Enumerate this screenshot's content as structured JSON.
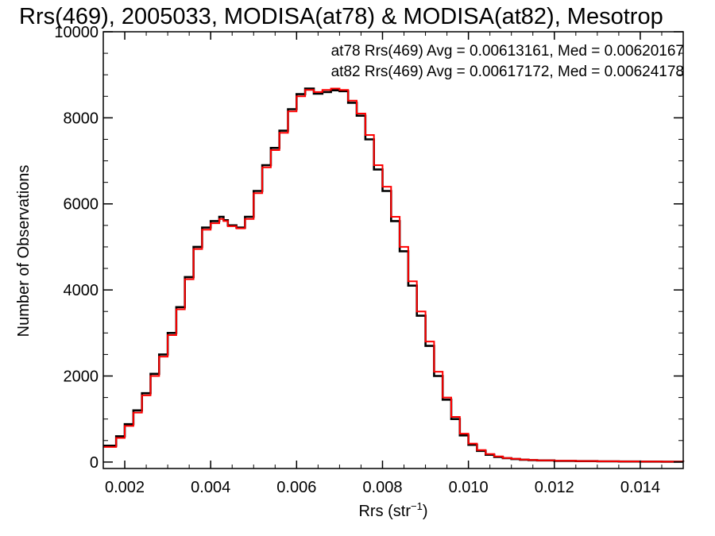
{
  "chart_data": {
    "type": "line",
    "step": true,
    "title": "Rrs(469), 2005033, MODISA(at78) & MODISA(at82), Mesotrop",
    "xlabel": "Rrs (str",
    "xlabel_sup": "−1",
    "xlabel_close": ")",
    "ylabel": "Number of Observations",
    "xlim": [
      0.0015,
      0.015
    ],
    "ylim": [
      -150,
      10000
    ],
    "xticks": [
      {
        "value": 0.002,
        "label": "0.002"
      },
      {
        "value": 0.004,
        "label": "0.004"
      },
      {
        "value": 0.006,
        "label": "0.006"
      },
      {
        "value": 0.008,
        "label": "0.008"
      },
      {
        "value": 0.01,
        "label": "0.010"
      },
      {
        "value": 0.012,
        "label": "0.012"
      },
      {
        "value": 0.014,
        "label": "0.014"
      }
    ],
    "yticks": [
      {
        "value": 0,
        "label": "0"
      },
      {
        "value": 2000,
        "label": "2000"
      },
      {
        "value": 4000,
        "label": "4000"
      },
      {
        "value": 6000,
        "label": "6000"
      },
      {
        "value": 8000,
        "label": "8000"
      },
      {
        "value": 10000,
        "label": "10000"
      }
    ],
    "annotations": [
      {
        "text": "at78 Rrs(469) Avg = 0.00613161, Med = 0.00620167",
        "color": "#000000"
      },
      {
        "text": "at82 Rrs(469) Avg = 0.00617172, Med = 0.00624178",
        "color": "#ff0000"
      }
    ],
    "x": [
      0.0015,
      0.0018,
      0.002,
      0.0022,
      0.0024,
      0.0026,
      0.0028,
      0.003,
      0.0032,
      0.0034,
      0.0036,
      0.0038,
      0.004,
      0.0042,
      0.0043,
      0.0044,
      0.0046,
      0.0048,
      0.005,
      0.0052,
      0.0054,
      0.0056,
      0.0058,
      0.006,
      0.0062,
      0.0064,
      0.0066,
      0.0068,
      0.007,
      0.0072,
      0.0074,
      0.0076,
      0.0078,
      0.008,
      0.0082,
      0.0084,
      0.0086,
      0.0088,
      0.009,
      0.0092,
      0.0094,
      0.0096,
      0.0098,
      0.01,
      0.0102,
      0.0104,
      0.0106,
      0.0108,
      0.011,
      0.0112,
      0.0114,
      0.0116,
      0.012,
      0.0125,
      0.013,
      0.0135,
      0.014,
      0.0145,
      0.015
    ],
    "series": [
      {
        "name": "at78",
        "color": "#000000",
        "values": [
          380,
          600,
          880,
          1200,
          1600,
          2050,
          2500,
          3000,
          3600,
          4300,
          5000,
          5450,
          5600,
          5700,
          5620,
          5500,
          5450,
          5700,
          6300,
          6900,
          7300,
          7700,
          8200,
          8550,
          8680,
          8560,
          8600,
          8640,
          8620,
          8350,
          8050,
          7500,
          6800,
          6300,
          5600,
          4900,
          4100,
          3400,
          2700,
          2000,
          1450,
          1000,
          620,
          400,
          260,
          170,
          120,
          90,
          70,
          55,
          45,
          38,
          28,
          22,
          16,
          12,
          10,
          8,
          6
        ]
      },
      {
        "name": "at82",
        "color": "#ff0000",
        "values": [
          350,
          560,
          840,
          1150,
          1550,
          2000,
          2450,
          2950,
          3550,
          4250,
          4950,
          5400,
          5550,
          5650,
          5600,
          5480,
          5430,
          5650,
          6250,
          6850,
          7250,
          7650,
          8150,
          8500,
          8650,
          8600,
          8650,
          8680,
          8650,
          8400,
          8100,
          7600,
          6900,
          6400,
          5700,
          5000,
          4200,
          3500,
          2800,
          2100,
          1500,
          1050,
          660,
          430,
          280,
          185,
          130,
          95,
          75,
          58,
          47,
          40,
          30,
          24,
          18,
          14,
          11,
          9,
          7
        ]
      }
    ]
  }
}
